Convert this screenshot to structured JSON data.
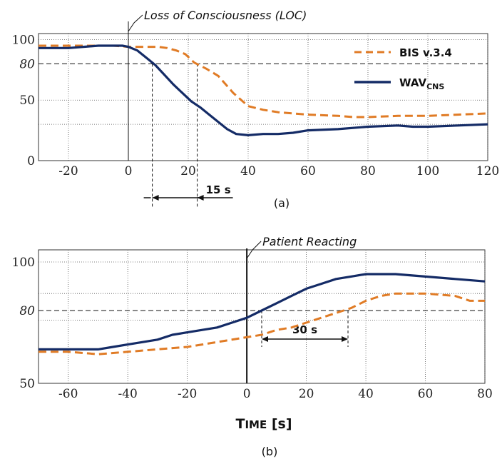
{
  "colors": {
    "bis": "#E07B25",
    "wav": "#142B66",
    "grid": "#555555"
  },
  "chart_data": [
    {
      "type": "line",
      "xlim": [
        -30,
        120
      ],
      "ylim": [
        0,
        105
      ],
      "x_ticks": [
        "-20",
        "0",
        "20",
        "40",
        "60",
        "80",
        "100",
        "120"
      ],
      "y_ticks": [
        "100",
        "50",
        "0"
      ],
      "y_ref_tick": "80",
      "y_ref": 80,
      "grid": true,
      "legend_position": "top-right",
      "event_x": 0,
      "annotation": "Loss of Consciousness (LOC)",
      "delay_label": "15 s",
      "delay_x": [
        8,
        23
      ],
      "caption": "(a)",
      "series": [
        {
          "name": "BIS v.3.4",
          "style": "dashed",
          "points": [
            [
              -30,
              95
            ],
            [
              -20,
              95
            ],
            [
              -5,
              95
            ],
            [
              0,
              94
            ],
            [
              10,
              94
            ],
            [
              13,
              93
            ],
            [
              16,
              91
            ],
            [
              19,
              88
            ],
            [
              22,
              81
            ],
            [
              26,
              76
            ],
            [
              30,
              70
            ],
            [
              35,
              56
            ],
            [
              40,
              45
            ],
            [
              45,
              42
            ],
            [
              50,
              40
            ],
            [
              60,
              38
            ],
            [
              70,
              37
            ],
            [
              75,
              36
            ],
            [
              80,
              36
            ],
            [
              90,
              37
            ],
            [
              100,
              37
            ],
            [
              110,
              38
            ],
            [
              120,
              39
            ]
          ]
        },
        {
          "name": "WAV_CNS",
          "style": "solid",
          "points": [
            [
              -30,
              93
            ],
            [
              -20,
              93
            ],
            [
              -10,
              95
            ],
            [
              -2,
              95
            ],
            [
              0,
              94
            ],
            [
              3,
              91
            ],
            [
              6,
              85
            ],
            [
              9,
              79
            ],
            [
              12,
              71
            ],
            [
              15,
              63
            ],
            [
              18,
              56
            ],
            [
              21,
              49
            ],
            [
              24,
              44
            ],
            [
              27,
              38
            ],
            [
              30,
              32
            ],
            [
              33,
              26
            ],
            [
              36,
              22
            ],
            [
              40,
              21
            ],
            [
              45,
              22
            ],
            [
              50,
              22
            ],
            [
              55,
              23
            ],
            [
              60,
              25
            ],
            [
              70,
              26
            ],
            [
              80,
              28
            ],
            [
              90,
              29
            ],
            [
              95,
              28
            ],
            [
              100,
              28
            ],
            [
              110,
              29
            ],
            [
              120,
              30
            ]
          ]
        }
      ]
    },
    {
      "type": "line",
      "xlim": [
        -70,
        80
      ],
      "ylim": [
        50,
        105
      ],
      "x_ticks": [
        "-60",
        "-40",
        "-20",
        "0",
        "20",
        "40",
        "60",
        "80"
      ],
      "y_ticks": [
        "100",
        "50"
      ],
      "y_ref_tick": "80",
      "y_ref": 80,
      "grid": true,
      "event_x": 0,
      "annotation": "Patient Reacting",
      "delay_label": "30 s",
      "delay_x": [
        5,
        34
      ],
      "xlabel": "TIME [s]",
      "caption": "(b)",
      "series": [
        {
          "name": "BIS v.3.4",
          "style": "dashed",
          "points": [
            [
              -70,
              63
            ],
            [
              -60,
              63
            ],
            [
              -50,
              62
            ],
            [
              -40,
              63
            ],
            [
              -30,
              64
            ],
            [
              -20,
              65
            ],
            [
              -10,
              67
            ],
            [
              0,
              69
            ],
            [
              5,
              70
            ],
            [
              10,
              72
            ],
            [
              15,
              73
            ],
            [
              20,
              75
            ],
            [
              25,
              77
            ],
            [
              30,
              79
            ],
            [
              35,
              81
            ],
            [
              40,
              84
            ],
            [
              45,
              86
            ],
            [
              50,
              87
            ],
            [
              60,
              87
            ],
            [
              70,
              86
            ],
            [
              75,
              84
            ],
            [
              80,
              84
            ]
          ]
        },
        {
          "name": "WAV_CNS",
          "style": "solid",
          "points": [
            [
              -70,
              64
            ],
            [
              -60,
              64
            ],
            [
              -50,
              64
            ],
            [
              -45,
              65
            ],
            [
              -40,
              66
            ],
            [
              -35,
              67
            ],
            [
              -30,
              68
            ],
            [
              -25,
              70
            ],
            [
              -20,
              71
            ],
            [
              -10,
              73
            ],
            [
              -5,
              75
            ],
            [
              0,
              77
            ],
            [
              5,
              80
            ],
            [
              10,
              83
            ],
            [
              15,
              86
            ],
            [
              20,
              89
            ],
            [
              25,
              91
            ],
            [
              30,
              93
            ],
            [
              35,
              94
            ],
            [
              40,
              95
            ],
            [
              50,
              95
            ],
            [
              60,
              94
            ],
            [
              70,
              93
            ],
            [
              80,
              92
            ]
          ]
        }
      ]
    }
  ],
  "legend": {
    "bis_label": "BIS v.3.4",
    "wav_label": "WAV",
    "wav_sub": "CNS"
  },
  "xlabel_parts": {
    "big": "T",
    "small": "IME",
    "rest": " [s]"
  }
}
